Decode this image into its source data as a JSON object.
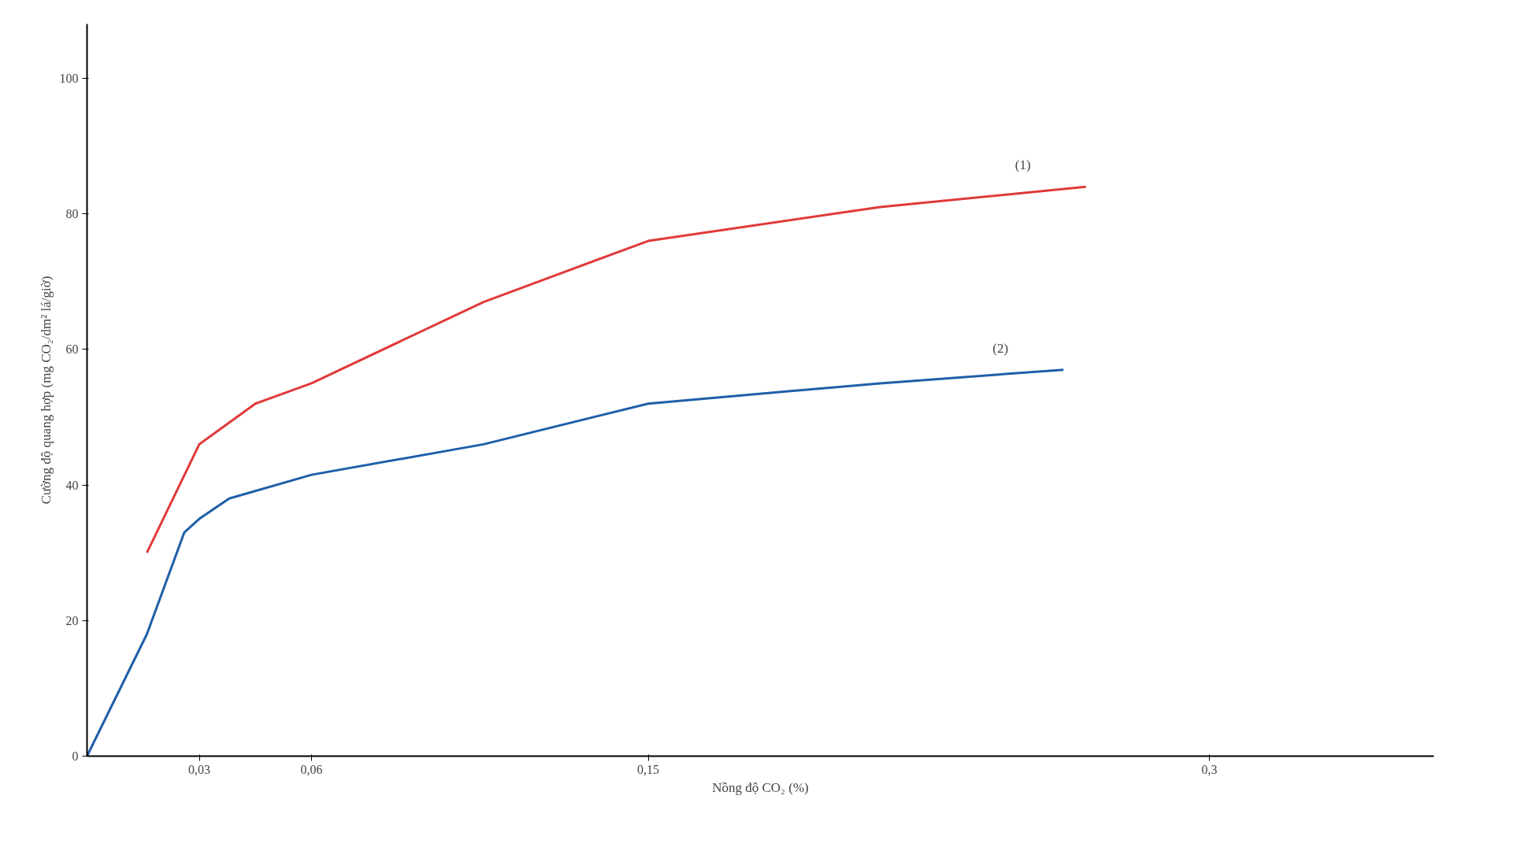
{
  "chart_data": {
    "type": "line",
    "xlabel": "Nồng độ CO₂ (%)",
    "ylabel": "Cường độ quang hợp (mg CO₂/dm² lá/giờ)",
    "xlim": [
      0,
      0.36
    ],
    "ylim": [
      0,
      108
    ],
    "xticks": [
      {
        "value": 0.03,
        "label": "0,03"
      },
      {
        "value": 0.06,
        "label": "0,06"
      },
      {
        "value": 0.15,
        "label": "0,15"
      },
      {
        "value": 0.3,
        "label": "0,3"
      }
    ],
    "yticks": [
      0,
      20,
      40,
      60,
      80,
      100
    ],
    "grid": false,
    "legend": false,
    "marker": "none",
    "line_style": "solid",
    "series": [
      {
        "name": "(1)",
        "color": "#e03a3a",
        "x": [
          0.016,
          0.03,
          0.045,
          0.06,
          0.106,
          0.15,
          0.212,
          0.267
        ],
        "values": [
          30,
          46,
          52,
          55,
          67,
          76,
          81,
          84
        ]
      },
      {
        "name": "(2)",
        "color": "#1f5fa8",
        "x": [
          0,
          0.016,
          0.026,
          0.03,
          0.038,
          0.06,
          0.106,
          0.15,
          0.212,
          0.261
        ],
        "values": [
          0,
          18,
          33,
          35,
          38,
          41.5,
          46,
          52,
          55,
          57
        ]
      }
    ]
  }
}
